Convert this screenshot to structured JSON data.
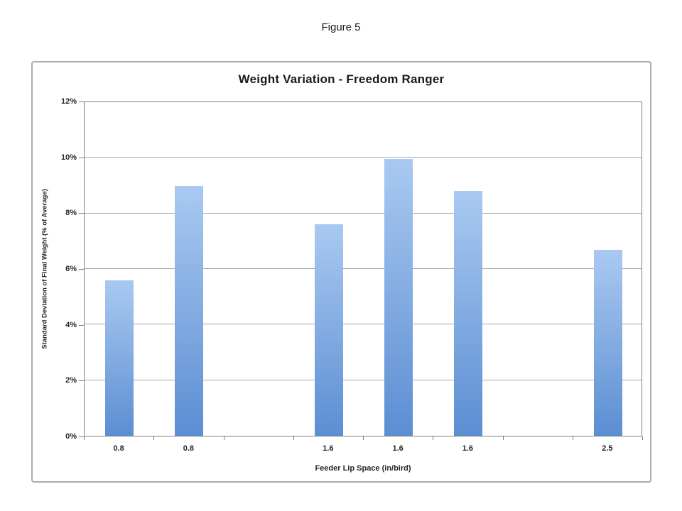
{
  "figure_label": "Figure 5",
  "chart_data": {
    "type": "bar",
    "title": "Weight Variation - Freedom Ranger",
    "xlabel": "Feeder Lip Space (in/bird)",
    "ylabel": "Standard Deviation of Final Weight (% of Average)",
    "categories": [
      "0.8",
      "0.8",
      "",
      "1.6",
      "1.6",
      "1.6",
      "",
      "2.5"
    ],
    "values": [
      5.6,
      9.0,
      null,
      7.6,
      9.95,
      8.8,
      null,
      6.7
    ],
    "ylim": [
      0,
      12
    ],
    "ytick_step": 2,
    "ytick_labels": [
      "0%",
      "2%",
      "4%",
      "6%",
      "8%",
      "10%",
      "12%"
    ],
    "grid": true,
    "legend": "none",
    "colors": {
      "bar_gradient_top": "#a9c9f1",
      "bar_gradient_bottom": "#5b8ed3",
      "gridline": "#a6a6a6",
      "plot_border": "#7f7f7f",
      "label_text": "#262626",
      "title_text": "#1a1a1a",
      "chart_border": "#ababab"
    }
  }
}
